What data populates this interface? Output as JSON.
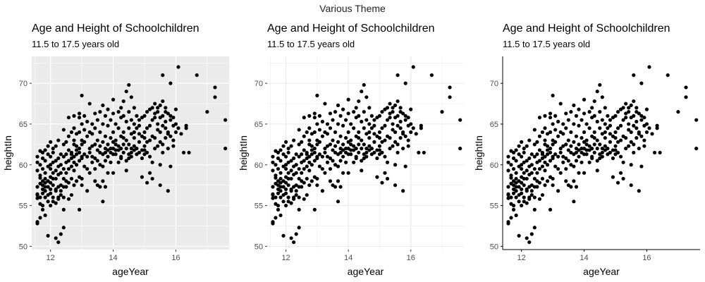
{
  "figure": {
    "title": "Various Theme"
  },
  "colors": {
    "point": "#000000",
    "grey_panel_bg": "#EBEBEB",
    "grid_major_on_grey": "#FFFFFF",
    "grid_on_white": "#EBEBEB",
    "axis_text": "#4D4D4D",
    "title_text": "#000000"
  },
  "chart_data": [
    {
      "type": "scatter",
      "theme": "grey",
      "title": "Age and Height of Schoolchildren",
      "subtitle": "11.5 to 17.5 years old",
      "xlabel": "ageYear",
      "ylabel": "heightIn",
      "xlim": [
        11.4,
        17.7
      ],
      "ylim": [
        49.6,
        73.3
      ],
      "xticks": [
        12,
        14,
        16
      ],
      "yticks": [
        50,
        55,
        60,
        65,
        70
      ],
      "grid": true,
      "panel_border": false,
      "axis_lines": false,
      "points": "shared"
    },
    {
      "type": "scatter",
      "theme": "bw-minimal",
      "title": "Age and Height of Schoolchildren",
      "subtitle": "11.5 to 17.5 years old",
      "xlabel": "ageYear",
      "ylabel": "heightIn",
      "xlim": [
        11.4,
        17.7
      ],
      "ylim": [
        49.6,
        73.3
      ],
      "xticks": [
        12,
        14,
        16
      ],
      "yticks": [
        50,
        55,
        60,
        65,
        70
      ],
      "grid": true,
      "panel_border": false,
      "axis_lines": false,
      "points": "shared"
    },
    {
      "type": "scatter",
      "theme": "classic",
      "title": "Age and Height of Schoolchildren",
      "subtitle": "11.5 to 17.5 years old",
      "xlabel": "ageYear",
      "ylabel": "heightIn",
      "xlim": [
        11.4,
        17.7
      ],
      "ylim": [
        49.6,
        73.3
      ],
      "xticks": [
        12,
        14,
        16
      ],
      "yticks": [
        50,
        55,
        60,
        65,
        70
      ],
      "grid": false,
      "panel_border": false,
      "axis_lines": true,
      "points": "shared"
    }
  ],
  "points": [
    [
      11.58,
      56.3
    ],
    [
      11.58,
      55.9
    ],
    [
      11.58,
      57.3
    ],
    [
      11.58,
      59.3
    ],
    [
      11.58,
      60.3
    ],
    [
      11.58,
      61.0
    ],
    [
      11.58,
      53.0
    ],
    [
      11.58,
      52.8
    ],
    [
      11.58,
      56.4
    ],
    [
      11.67,
      53.5
    ],
    [
      11.67,
      55.2
    ],
    [
      11.67,
      57.7
    ],
    [
      11.67,
      58.4
    ],
    [
      11.67,
      61.7
    ],
    [
      11.67,
      56.0
    ],
    [
      11.67,
      60.0
    ],
    [
      11.67,
      58.7
    ],
    [
      11.75,
      54.5
    ],
    [
      11.75,
      56.5
    ],
    [
      11.75,
      57.5
    ],
    [
      11.75,
      59.5
    ],
    [
      11.75,
      61.5
    ],
    [
      11.75,
      60.8
    ],
    [
      11.75,
      55.0
    ],
    [
      11.75,
      57.0
    ],
    [
      11.75,
      58.0
    ],
    [
      11.83,
      56.8
    ],
    [
      11.83,
      57.8
    ],
    [
      11.83,
      58.3
    ],
    [
      11.83,
      59.0
    ],
    [
      11.83,
      61.8
    ],
    [
      11.83,
      53.8
    ],
    [
      11.83,
      56.0
    ],
    [
      11.83,
      60.5
    ],
    [
      11.83,
      57.3
    ],
    [
      11.92,
      51.3
    ],
    [
      11.92,
      56.3
    ],
    [
      11.92,
      57.3
    ],
    [
      11.92,
      58.0
    ],
    [
      11.92,
      59.8
    ],
    [
      11.92,
      61.3
    ],
    [
      11.92,
      62.3
    ],
    [
      11.92,
      55.5
    ],
    [
      12.0,
      55.0
    ],
    [
      12.0,
      56.5
    ],
    [
      12.0,
      57.0
    ],
    [
      12.0,
      58.5
    ],
    [
      12.0,
      59.5
    ],
    [
      12.0,
      60.0
    ],
    [
      12.0,
      61.0
    ],
    [
      12.0,
      62.8
    ],
    [
      12.0,
      57.8
    ],
    [
      12.08,
      55.5
    ],
    [
      12.08,
      56.0
    ],
    [
      12.08,
      57.5
    ],
    [
      12.08,
      59.0
    ],
    [
      12.08,
      60.3
    ],
    [
      12.08,
      61.5
    ],
    [
      12.08,
      62.0
    ],
    [
      12.08,
      58.3
    ],
    [
      12.17,
      51.0
    ],
    [
      12.17,
      55.3
    ],
    [
      12.17,
      56.8
    ],
    [
      12.17,
      58.3
    ],
    [
      12.17,
      59.3
    ],
    [
      12.17,
      60.5
    ],
    [
      12.17,
      62.3
    ],
    [
      12.17,
      57.0
    ],
    [
      12.25,
      50.5
    ],
    [
      12.25,
      55.8
    ],
    [
      12.25,
      57.3
    ],
    [
      12.25,
      58.8
    ],
    [
      12.25,
      59.8
    ],
    [
      12.25,
      60.8
    ],
    [
      12.25,
      63.0
    ],
    [
      12.25,
      56.0
    ],
    [
      12.33,
      51.5
    ],
    [
      12.33,
      56.3
    ],
    [
      12.33,
      57.5
    ],
    [
      12.33,
      59.0
    ],
    [
      12.33,
      60.0
    ],
    [
      12.33,
      61.3
    ],
    [
      12.33,
      56.8
    ],
    [
      12.42,
      52.3
    ],
    [
      12.42,
      54.5
    ],
    [
      12.42,
      57.3
    ],
    [
      12.42,
      58.3
    ],
    [
      12.42,
      59.5
    ],
    [
      12.42,
      61.0
    ],
    [
      12.42,
      62.5
    ],
    [
      12.42,
      64.3
    ],
    [
      12.42,
      56.0
    ],
    [
      12.5,
      59.0
    ],
    [
      12.5,
      60.3
    ],
    [
      12.5,
      61.3
    ],
    [
      12.5,
      62.8
    ],
    [
      12.5,
      58.0
    ],
    [
      12.5,
      57.3
    ],
    [
      12.58,
      57.8
    ],
    [
      12.58,
      59.5
    ],
    [
      12.58,
      60.5
    ],
    [
      12.58,
      61.8
    ],
    [
      12.58,
      63.5
    ],
    [
      12.58,
      65.8
    ],
    [
      12.58,
      55.8
    ],
    [
      12.67,
      56.3
    ],
    [
      12.67,
      58.3
    ],
    [
      12.67,
      59.8
    ],
    [
      12.67,
      60.8
    ],
    [
      12.67,
      61.5
    ],
    [
      12.67,
      64.0
    ],
    [
      12.67,
      61.3
    ],
    [
      12.75,
      57.5
    ],
    [
      12.75,
      59.3
    ],
    [
      12.75,
      60.3
    ],
    [
      12.75,
      61.0
    ],
    [
      12.75,
      62.5
    ],
    [
      12.75,
      64.5
    ],
    [
      12.75,
      66.0
    ],
    [
      12.75,
      63.0
    ],
    [
      12.83,
      58.0
    ],
    [
      12.83,
      60.0
    ],
    [
      12.83,
      61.8
    ],
    [
      12.83,
      62.3
    ],
    [
      12.83,
      63.8
    ],
    [
      12.83,
      61.3
    ],
    [
      12.92,
      54.5
    ],
    [
      12.92,
      58.5
    ],
    [
      12.92,
      60.5
    ],
    [
      12.92,
      62.0
    ],
    [
      12.92,
      64.0
    ],
    [
      12.92,
      65.8
    ],
    [
      12.92,
      66.3
    ],
    [
      12.92,
      61.5
    ],
    [
      13.0,
      57.5
    ],
    [
      13.0,
      60.8
    ],
    [
      13.0,
      62.5
    ],
    [
      13.0,
      63.0
    ],
    [
      13.0,
      65.0
    ],
    [
      13.0,
      68.5
    ],
    [
      13.0,
      58.3
    ],
    [
      13.0,
      61.0
    ],
    [
      13.08,
      59.8
    ],
    [
      13.08,
      61.3
    ],
    [
      13.08,
      62.8
    ],
    [
      13.08,
      64.3
    ],
    [
      13.08,
      66.0
    ],
    [
      13.17,
      56.8
    ],
    [
      13.17,
      59.5
    ],
    [
      13.17,
      61.0
    ],
    [
      13.17,
      63.5
    ],
    [
      13.17,
      65.3
    ],
    [
      13.25,
      59.0
    ],
    [
      13.25,
      61.5
    ],
    [
      13.25,
      62.0
    ],
    [
      13.25,
      64.0
    ],
    [
      13.25,
      67.5
    ],
    [
      13.33,
      60.3
    ],
    [
      13.33,
      62.3
    ],
    [
      13.33,
      63.8
    ],
    [
      13.33,
      65.0
    ],
    [
      13.33,
      61.0
    ],
    [
      13.42,
      58.0
    ],
    [
      13.42,
      60.8
    ],
    [
      13.42,
      62.5
    ],
    [
      13.42,
      64.5
    ],
    [
      13.42,
      66.3
    ],
    [
      13.42,
      59.5
    ],
    [
      13.5,
      57.5
    ],
    [
      13.5,
      61.8
    ],
    [
      13.5,
      63.0
    ],
    [
      13.5,
      65.5
    ],
    [
      13.5,
      60.5
    ],
    [
      13.58,
      57.3
    ],
    [
      13.58,
      60.0
    ],
    [
      13.58,
      61.5
    ],
    [
      13.58,
      64.0
    ],
    [
      13.58,
      66.5
    ],
    [
      13.58,
      62.3
    ],
    [
      13.67,
      55.5
    ],
    [
      13.67,
      58.0
    ],
    [
      13.67,
      59.8
    ],
    [
      13.67,
      61.3
    ],
    [
      13.67,
      62.8
    ],
    [
      13.67,
      65.0
    ],
    [
      13.67,
      67.3
    ],
    [
      13.75,
      57.3
    ],
    [
      13.75,
      60.5
    ],
    [
      13.75,
      62.0
    ],
    [
      13.75,
      63.5
    ],
    [
      13.75,
      66.0
    ],
    [
      13.75,
      61.5
    ],
    [
      13.83,
      59.0
    ],
    [
      13.83,
      61.0
    ],
    [
      13.83,
      62.5
    ],
    [
      13.83,
      64.8
    ],
    [
      13.83,
      66.8
    ],
    [
      13.83,
      61.8
    ],
    [
      13.92,
      61.5
    ],
    [
      13.92,
      62.0
    ],
    [
      13.92,
      63.3
    ],
    [
      13.92,
      65.5
    ],
    [
      13.92,
      60.3
    ],
    [
      14.0,
      61.3
    ],
    [
      14.0,
      62.0
    ],
    [
      14.0,
      62.8
    ],
    [
      14.0,
      64.0
    ],
    [
      14.0,
      66.3
    ],
    [
      14.0,
      68.0
    ],
    [
      14.0,
      59.0
    ],
    [
      14.08,
      61.8
    ],
    [
      14.08,
      62.5
    ],
    [
      14.08,
      63.0
    ],
    [
      14.08,
      65.0
    ],
    [
      14.08,
      61.3
    ],
    [
      14.17,
      60.3
    ],
    [
      14.17,
      62.3
    ],
    [
      14.17,
      64.5
    ],
    [
      14.17,
      66.5
    ],
    [
      14.17,
      61.8
    ],
    [
      14.25,
      60.8
    ],
    [
      14.25,
      62.0
    ],
    [
      14.25,
      63.5
    ],
    [
      14.25,
      65.8
    ],
    [
      14.25,
      67.0
    ],
    [
      14.25,
      61.0
    ],
    [
      14.33,
      61.5
    ],
    [
      14.33,
      62.5
    ],
    [
      14.33,
      64.0
    ],
    [
      14.33,
      66.0
    ],
    [
      14.33,
      67.8
    ],
    [
      14.33,
      63.3
    ],
    [
      14.42,
      59.3
    ],
    [
      14.42,
      62.0
    ],
    [
      14.42,
      63.0
    ],
    [
      14.42,
      65.3
    ],
    [
      14.42,
      69.0
    ],
    [
      14.42,
      60.5
    ],
    [
      14.5,
      61.3
    ],
    [
      14.5,
      62.5
    ],
    [
      14.5,
      64.5
    ],
    [
      14.5,
      66.5
    ],
    [
      14.5,
      69.8
    ],
    [
      14.5,
      60.8
    ],
    [
      14.58,
      61.0
    ],
    [
      14.58,
      62.0
    ],
    [
      14.58,
      63.8
    ],
    [
      14.58,
      65.5
    ],
    [
      14.58,
      68.3
    ],
    [
      14.58,
      61.5
    ],
    [
      14.67,
      61.8
    ],
    [
      14.67,
      62.3
    ],
    [
      14.67,
      64.0
    ],
    [
      14.67,
      65.0
    ],
    [
      14.67,
      67.0
    ],
    [
      14.67,
      63.3
    ],
    [
      14.75,
      62.0
    ],
    [
      14.75,
      64.5
    ],
    [
      14.75,
      66.0
    ],
    [
      14.75,
      61.3
    ],
    [
      14.83,
      61.5
    ],
    [
      14.83,
      62.8
    ],
    [
      14.83,
      64.8
    ],
    [
      14.83,
      65.5
    ],
    [
      14.83,
      63.8
    ],
    [
      14.92,
      58.5
    ],
    [
      14.92,
      61.8
    ],
    [
      14.92,
      63.5
    ],
    [
      14.92,
      65.8
    ],
    [
      14.92,
      60.8
    ],
    [
      15.0,
      61.3
    ],
    [
      15.0,
      62.3
    ],
    [
      15.0,
      64.0
    ],
    [
      15.0,
      66.0
    ],
    [
      15.0,
      61.8
    ],
    [
      15.0,
      63.3
    ],
    [
      15.08,
      57.8
    ],
    [
      15.08,
      62.8
    ],
    [
      15.08,
      64.5
    ],
    [
      15.08,
      66.5
    ],
    [
      15.08,
      61.5
    ],
    [
      15.17,
      59.0
    ],
    [
      15.17,
      63.0
    ],
    [
      15.17,
      64.8
    ],
    [
      15.17,
      66.8
    ],
    [
      15.17,
      61.0
    ],
    [
      15.25,
      60.3
    ],
    [
      15.25,
      63.5
    ],
    [
      15.25,
      65.5
    ],
    [
      15.25,
      67.0
    ],
    [
      15.25,
      58.3
    ],
    [
      15.33,
      62.0
    ],
    [
      15.33,
      63.3
    ],
    [
      15.33,
      65.8
    ],
    [
      15.33,
      66.3
    ],
    [
      15.33,
      67.5
    ],
    [
      15.42,
      64.3
    ],
    [
      15.42,
      65.0
    ],
    [
      15.42,
      66.5
    ],
    [
      15.42,
      67.0
    ],
    [
      15.42,
      62.3
    ],
    [
      15.5,
      60.0
    ],
    [
      15.5,
      62.8
    ],
    [
      15.5,
      64.0
    ],
    [
      15.5,
      65.8
    ],
    [
      15.5,
      67.3
    ],
    [
      15.5,
      57.5
    ],
    [
      15.58,
      62.5
    ],
    [
      15.58,
      64.8
    ],
    [
      15.58,
      66.0
    ],
    [
      15.58,
      67.8
    ],
    [
      15.58,
      71.0
    ],
    [
      15.58,
      61.5
    ],
    [
      15.67,
      63.3
    ],
    [
      15.67,
      65.3
    ],
    [
      15.67,
      66.5
    ],
    [
      15.67,
      67.0
    ],
    [
      15.67,
      64.5
    ],
    [
      15.75,
      56.8
    ],
    [
      15.75,
      62.0
    ],
    [
      15.75,
      64.0
    ],
    [
      15.75,
      66.3
    ],
    [
      15.75,
      63.8
    ],
    [
      15.83,
      59.8
    ],
    [
      15.83,
      63.5
    ],
    [
      15.83,
      65.5
    ],
    [
      15.83,
      66.0
    ],
    [
      15.83,
      70.0
    ],
    [
      15.92,
      63.0
    ],
    [
      15.92,
      64.8
    ],
    [
      15.92,
      65.8
    ],
    [
      15.92,
      62.3
    ],
    [
      16.0,
      65.0
    ],
    [
      16.0,
      66.8
    ],
    [
      16.0,
      64.0
    ],
    [
      16.08,
      72.0
    ],
    [
      16.08,
      64.5
    ],
    [
      16.17,
      63.8
    ],
    [
      16.25,
      61.5
    ],
    [
      16.33,
      64.5
    ],
    [
      16.33,
      64.8
    ],
    [
      16.42,
      61.5
    ],
    [
      16.67,
      71.0
    ],
    [
      17.0,
      66.5
    ],
    [
      17.25,
      69.5
    ],
    [
      17.25,
      68.3
    ],
    [
      17.58,
      65.5
    ],
    [
      17.58,
      62.0
    ]
  ]
}
